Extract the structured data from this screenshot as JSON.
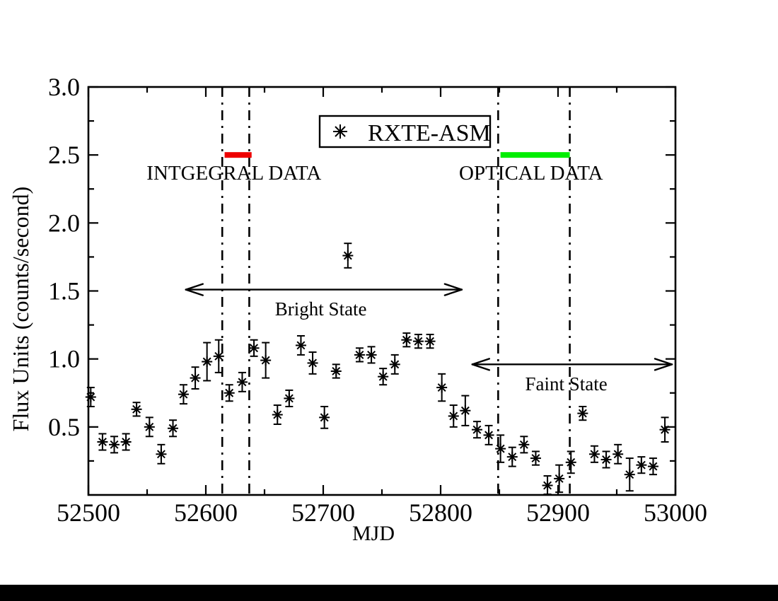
{
  "legend": {
    "marker": "asterisk-icon",
    "label": "RXTE-ASM"
  },
  "colors": {
    "integral_bar": "#ee0000",
    "optical_bar": "#00ee00",
    "data_points": "#000000",
    "frame": "#000000",
    "background": "#ffffff",
    "bottom_bar": "#000000"
  },
  "chart_data": {
    "type": "scatter",
    "title": "",
    "xlabel": "MJD",
    "ylabel": "Flux Units (counts/second)",
    "xlim": [
      52500,
      53000
    ],
    "ylim": [
      0,
      3.0
    ],
    "grid": false,
    "legend_position": "top-center",
    "x_ticks": {
      "major": [
        52500,
        52600,
        52700,
        52800,
        52900,
        53000
      ],
      "labels": [
        "52500",
        "52600",
        "52700",
        "52800",
        "52900",
        "53000"
      ],
      "minor": [
        52550,
        52650,
        52750,
        52850,
        52950
      ]
    },
    "y_ticks": {
      "major": [
        0.5,
        1.0,
        1.5,
        2.0,
        2.5,
        3.0
      ],
      "labels": [
        "0.5",
        "1.0",
        "1.5",
        "2.0",
        "2.5",
        "3.0"
      ],
      "minor": [
        0.25,
        0.75,
        1.25,
        1.75,
        2.25,
        2.75
      ]
    },
    "series": [
      {
        "name": "RXTE-ASM",
        "marker": "asterisk",
        "color": "#000000",
        "points_format": [
          "mjd",
          "flux",
          "error"
        ],
        "points": [
          [
            52502,
            0.72,
            0.07
          ],
          [
            52512,
            0.39,
            0.06
          ],
          [
            52522,
            0.37,
            0.06
          ],
          [
            52532,
            0.39,
            0.06
          ],
          [
            52541,
            0.63,
            0.05
          ],
          [
            52552,
            0.5,
            0.07
          ],
          [
            52562,
            0.3,
            0.07
          ],
          [
            52572,
            0.49,
            0.06
          ],
          [
            52581,
            0.74,
            0.07
          ],
          [
            52591,
            0.86,
            0.08
          ],
          [
            52601,
            0.98,
            0.14
          ],
          [
            52611,
            1.02,
            0.12
          ],
          [
            52620,
            0.75,
            0.06
          ],
          [
            52631,
            0.83,
            0.07
          ],
          [
            52641,
            1.08,
            0.06
          ],
          [
            52651,
            0.99,
            0.13
          ],
          [
            52661,
            0.59,
            0.07
          ],
          [
            52671,
            0.71,
            0.06
          ],
          [
            52681,
            1.1,
            0.07
          ],
          [
            52691,
            0.97,
            0.08
          ],
          [
            52701,
            0.57,
            0.08
          ],
          [
            52711,
            0.91,
            0.05
          ],
          [
            52721,
            1.76,
            0.09
          ],
          [
            52731,
            1.03,
            0.05
          ],
          [
            52741,
            1.03,
            0.06
          ],
          [
            52751,
            0.87,
            0.06
          ],
          [
            52761,
            0.96,
            0.07
          ],
          [
            52771,
            1.14,
            0.05
          ],
          [
            52781,
            1.13,
            0.05
          ],
          [
            52791,
            1.13,
            0.05
          ],
          [
            52801,
            0.79,
            0.1
          ],
          [
            52811,
            0.58,
            0.08
          ],
          [
            52821,
            0.62,
            0.11
          ],
          [
            52831,
            0.48,
            0.06
          ],
          [
            52841,
            0.44,
            0.07
          ],
          [
            52851,
            0.34,
            0.1
          ],
          [
            52861,
            0.28,
            0.07
          ],
          [
            52871,
            0.37,
            0.06
          ],
          [
            52881,
            0.27,
            0.05
          ],
          [
            52891,
            0.07,
            0.07
          ],
          [
            52901,
            0.12,
            0.1
          ],
          [
            52911,
            0.24,
            0.08
          ],
          [
            52921,
            0.6,
            0.05
          ],
          [
            52931,
            0.3,
            0.06
          ],
          [
            52941,
            0.26,
            0.06
          ],
          [
            52951,
            0.3,
            0.07
          ],
          [
            52961,
            0.15,
            0.12
          ],
          [
            52971,
            0.22,
            0.06
          ],
          [
            52981,
            0.21,
            0.06
          ],
          [
            52991,
            0.48,
            0.09
          ]
        ]
      }
    ],
    "vlines": {
      "style": "dash-dot",
      "color": "#000000",
      "x": [
        52614,
        52637,
        52849,
        52910
      ]
    },
    "spans": [
      {
        "label": "INTGEGRAL DATA",
        "color": "#ee0000",
        "x1": 52616,
        "x2": 52639,
        "y": 2.5,
        "label_x": 52624,
        "label_y": 2.32
      },
      {
        "label": "OPTICAL DATA",
        "color": "#00ee00",
        "x1": 52851,
        "x2": 52910,
        "y": 2.5,
        "label_x": 52877,
        "label_y": 2.32
      }
    ],
    "arrows": [
      {
        "label": "Bright State",
        "x1": 52583,
        "x2": 52818,
        "y": 1.51,
        "label_x": 52698,
        "label_y": 1.32,
        "double_headed": true
      },
      {
        "label": "Faint State",
        "x1": 52827,
        "x2": 52997,
        "y": 0.96,
        "label_x": 52907,
        "label_y": 0.77,
        "double_headed": true
      }
    ]
  }
}
